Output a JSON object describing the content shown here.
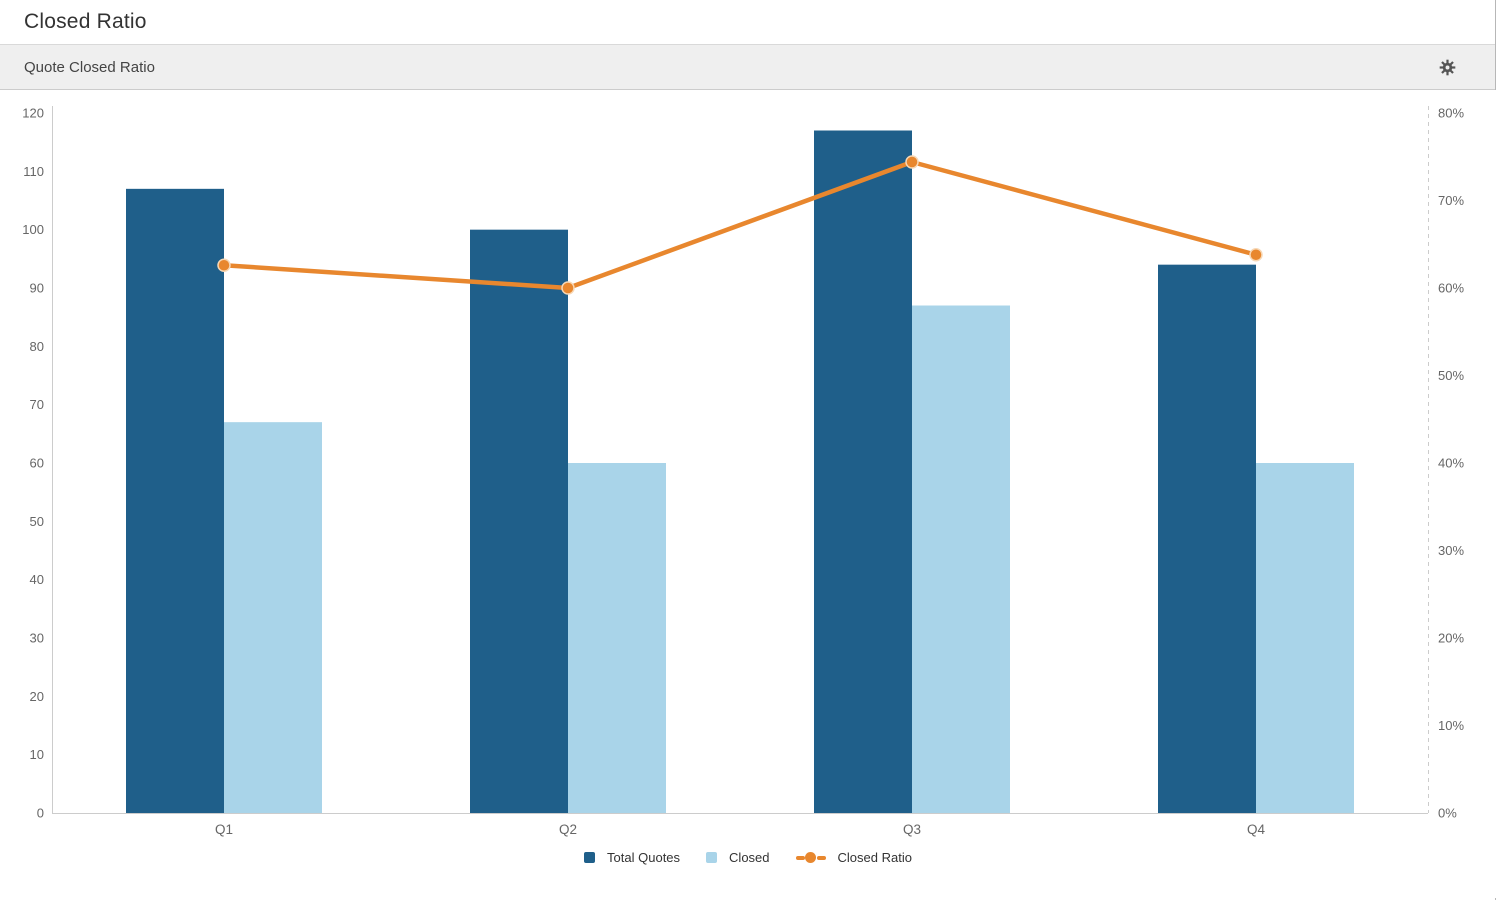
{
  "page": {
    "title": "Closed Ratio"
  },
  "panel": {
    "title": "Quote Closed Ratio"
  },
  "colors": {
    "total_quotes_bar": "#1f5f8a",
    "closed_bar": "#a9d4e9",
    "ratio_line": "#e8872e",
    "axis_line": "#cccccc",
    "tick_text": "#666666",
    "panel_bg": "#efefef",
    "gear_icon": "#555555"
  },
  "chart_data": {
    "type": "bar",
    "subtype": "grouped-bar-with-line-overlay",
    "title": "Quote Closed Ratio",
    "categories": [
      "Q1",
      "Q2",
      "Q3",
      "Q4"
    ],
    "series": [
      {
        "name": "Total Quotes",
        "type": "bar",
        "axis": "left",
        "color": "#1f5f8a",
        "values": [
          107,
          100,
          117,
          94
        ]
      },
      {
        "name": "Closed",
        "type": "bar",
        "axis": "left",
        "color": "#a9d4e9",
        "values": [
          67,
          60,
          87,
          60
        ]
      },
      {
        "name": "Closed Ratio",
        "type": "line",
        "axis": "right",
        "color": "#e8872e",
        "values": [
          62.6,
          60.0,
          74.4,
          63.8
        ],
        "suffix": "%"
      }
    ],
    "left_axis": {
      "min": 0,
      "max": 120,
      "step": 10,
      "suffix": "",
      "ticks": [
        "0",
        "10",
        "20",
        "30",
        "40",
        "50",
        "60",
        "70",
        "80",
        "90",
        "100",
        "110",
        "120"
      ]
    },
    "right_axis": {
      "min": 0,
      "max": 80,
      "step": 10,
      "suffix": "%",
      "ticks": [
        "0%",
        "10%",
        "20%",
        "30%",
        "40%",
        "50%",
        "60%",
        "70%",
        "80%"
      ],
      "line_style": "dashed"
    },
    "xlabel": "",
    "ylabel": "",
    "grid": false,
    "legend_position": "bottom-center",
    "legend_items": [
      "Total Quotes",
      "Closed",
      "Closed Ratio"
    ]
  }
}
